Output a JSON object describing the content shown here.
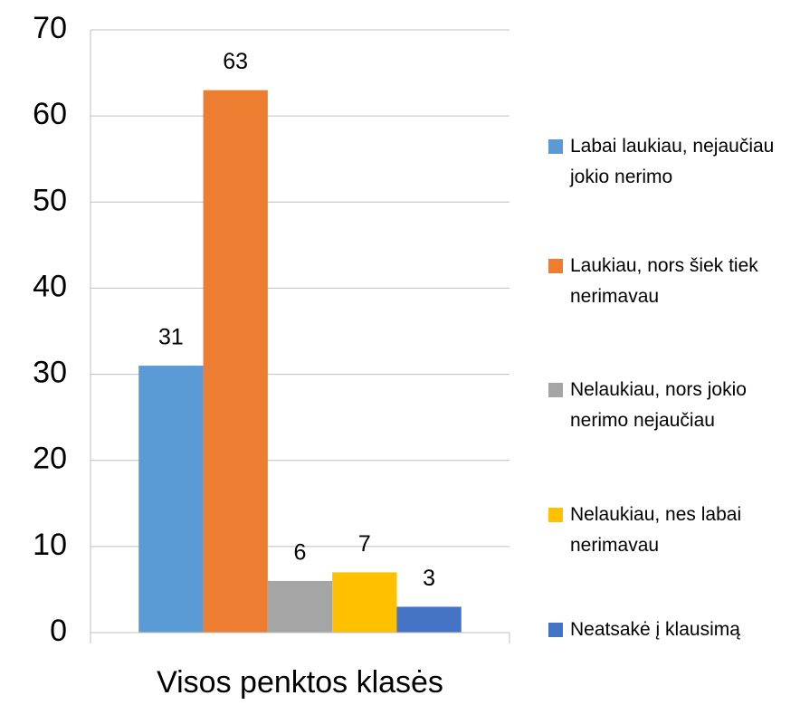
{
  "chart_data": {
    "type": "bar",
    "categories": [
      "Visos penktos klasės"
    ],
    "series": [
      {
        "name": "Labai laukiau, nejaučiau jokio nerimo",
        "color": "#5b9bd5",
        "values": [
          31
        ]
      },
      {
        "name": "Laukiau, nors šiek tiek nerimavau",
        "color": "#ed7d31",
        "values": [
          63
        ]
      },
      {
        "name": "Nelaukiau, nors jokio nerimo nejaučiau",
        "color": "#a5a5a5",
        "values": [
          6
        ]
      },
      {
        "name": "Nelaukiau, nes labai nerimavau",
        "color": "#ffc000",
        "values": [
          7
        ]
      },
      {
        "name": "Neatsakė į klausimą",
        "color": "#4472c4",
        "values": [
          3
        ]
      }
    ],
    "ylim": [
      0,
      70
    ],
    "yticks": [
      0,
      10,
      20,
      30,
      40,
      50,
      60,
      70
    ],
    "grid": true,
    "legend": "right"
  }
}
